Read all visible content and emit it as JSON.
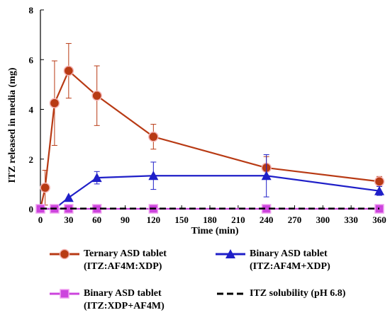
{
  "chart_data": {
    "type": "line",
    "xlabel": "Time (min)",
    "ylabel": "ITZ released in media (mg)",
    "xlim": [
      0,
      360
    ],
    "ylim": [
      0,
      8
    ],
    "xticks": [
      "0",
      "30",
      "60",
      "90",
      "120",
      "150",
      "180",
      "210",
      "240",
      "270",
      "300",
      "330",
      "360"
    ],
    "yticks": [
      "0",
      "2",
      "4",
      "6",
      "8"
    ],
    "series": [
      {
        "name": "Ternary ASD tablet (ITZ:AF4M:XDP)",
        "name_line1": "Ternary ASD tablet",
        "name_line2": "(ITZ:AF4M:XDP)",
        "color": "#b83a14",
        "marker": "circle",
        "x": [
          0,
          5,
          15,
          30,
          60,
          120,
          240,
          360
        ],
        "y": [
          0,
          0.85,
          4.25,
          5.55,
          4.55,
          2.9,
          1.65,
          1.1
        ],
        "err": [
          0,
          0.7,
          1.7,
          1.1,
          1.2,
          0.5,
          0.45,
          0.2
        ]
      },
      {
        "name": "Binary ASD tablet (ITZ:AF4M+XDP)",
        "name_line1": "Binary ASD tablet",
        "name_line2": "(ITZ:AF4M+XDP)",
        "color": "#1f1fc8",
        "marker": "triangle",
        "x": [
          0,
          15,
          30,
          60,
          120,
          240,
          360
        ],
        "y": [
          0,
          0,
          0.45,
          1.25,
          1.33,
          1.33,
          0.72
        ],
        "err": [
          0,
          0,
          0,
          0.25,
          0.55,
          0.85,
          0.18
        ]
      },
      {
        "name": "Binary ASD tablet (ITZ:XDP+AF4M)",
        "name_line1": "Binary ASD tablet",
        "name_line2": "(ITZ:XDP+AF4M)",
        "color": "#cc44dd",
        "marker": "square",
        "x": [
          0,
          15,
          30,
          60,
          120,
          240,
          360
        ],
        "y": [
          0,
          0,
          0,
          0,
          0,
          0,
          0
        ],
        "err": [
          0,
          0,
          0,
          0,
          0,
          0,
          0
        ]
      },
      {
        "name": "ITZ solubility (pH 6.8)",
        "name_line1": "ITZ solubility (pH 6.8)",
        "color": "#000000",
        "marker": "dashed-line",
        "x": [
          0,
          360
        ],
        "y": [
          0.01,
          0.01
        ]
      }
    ]
  }
}
